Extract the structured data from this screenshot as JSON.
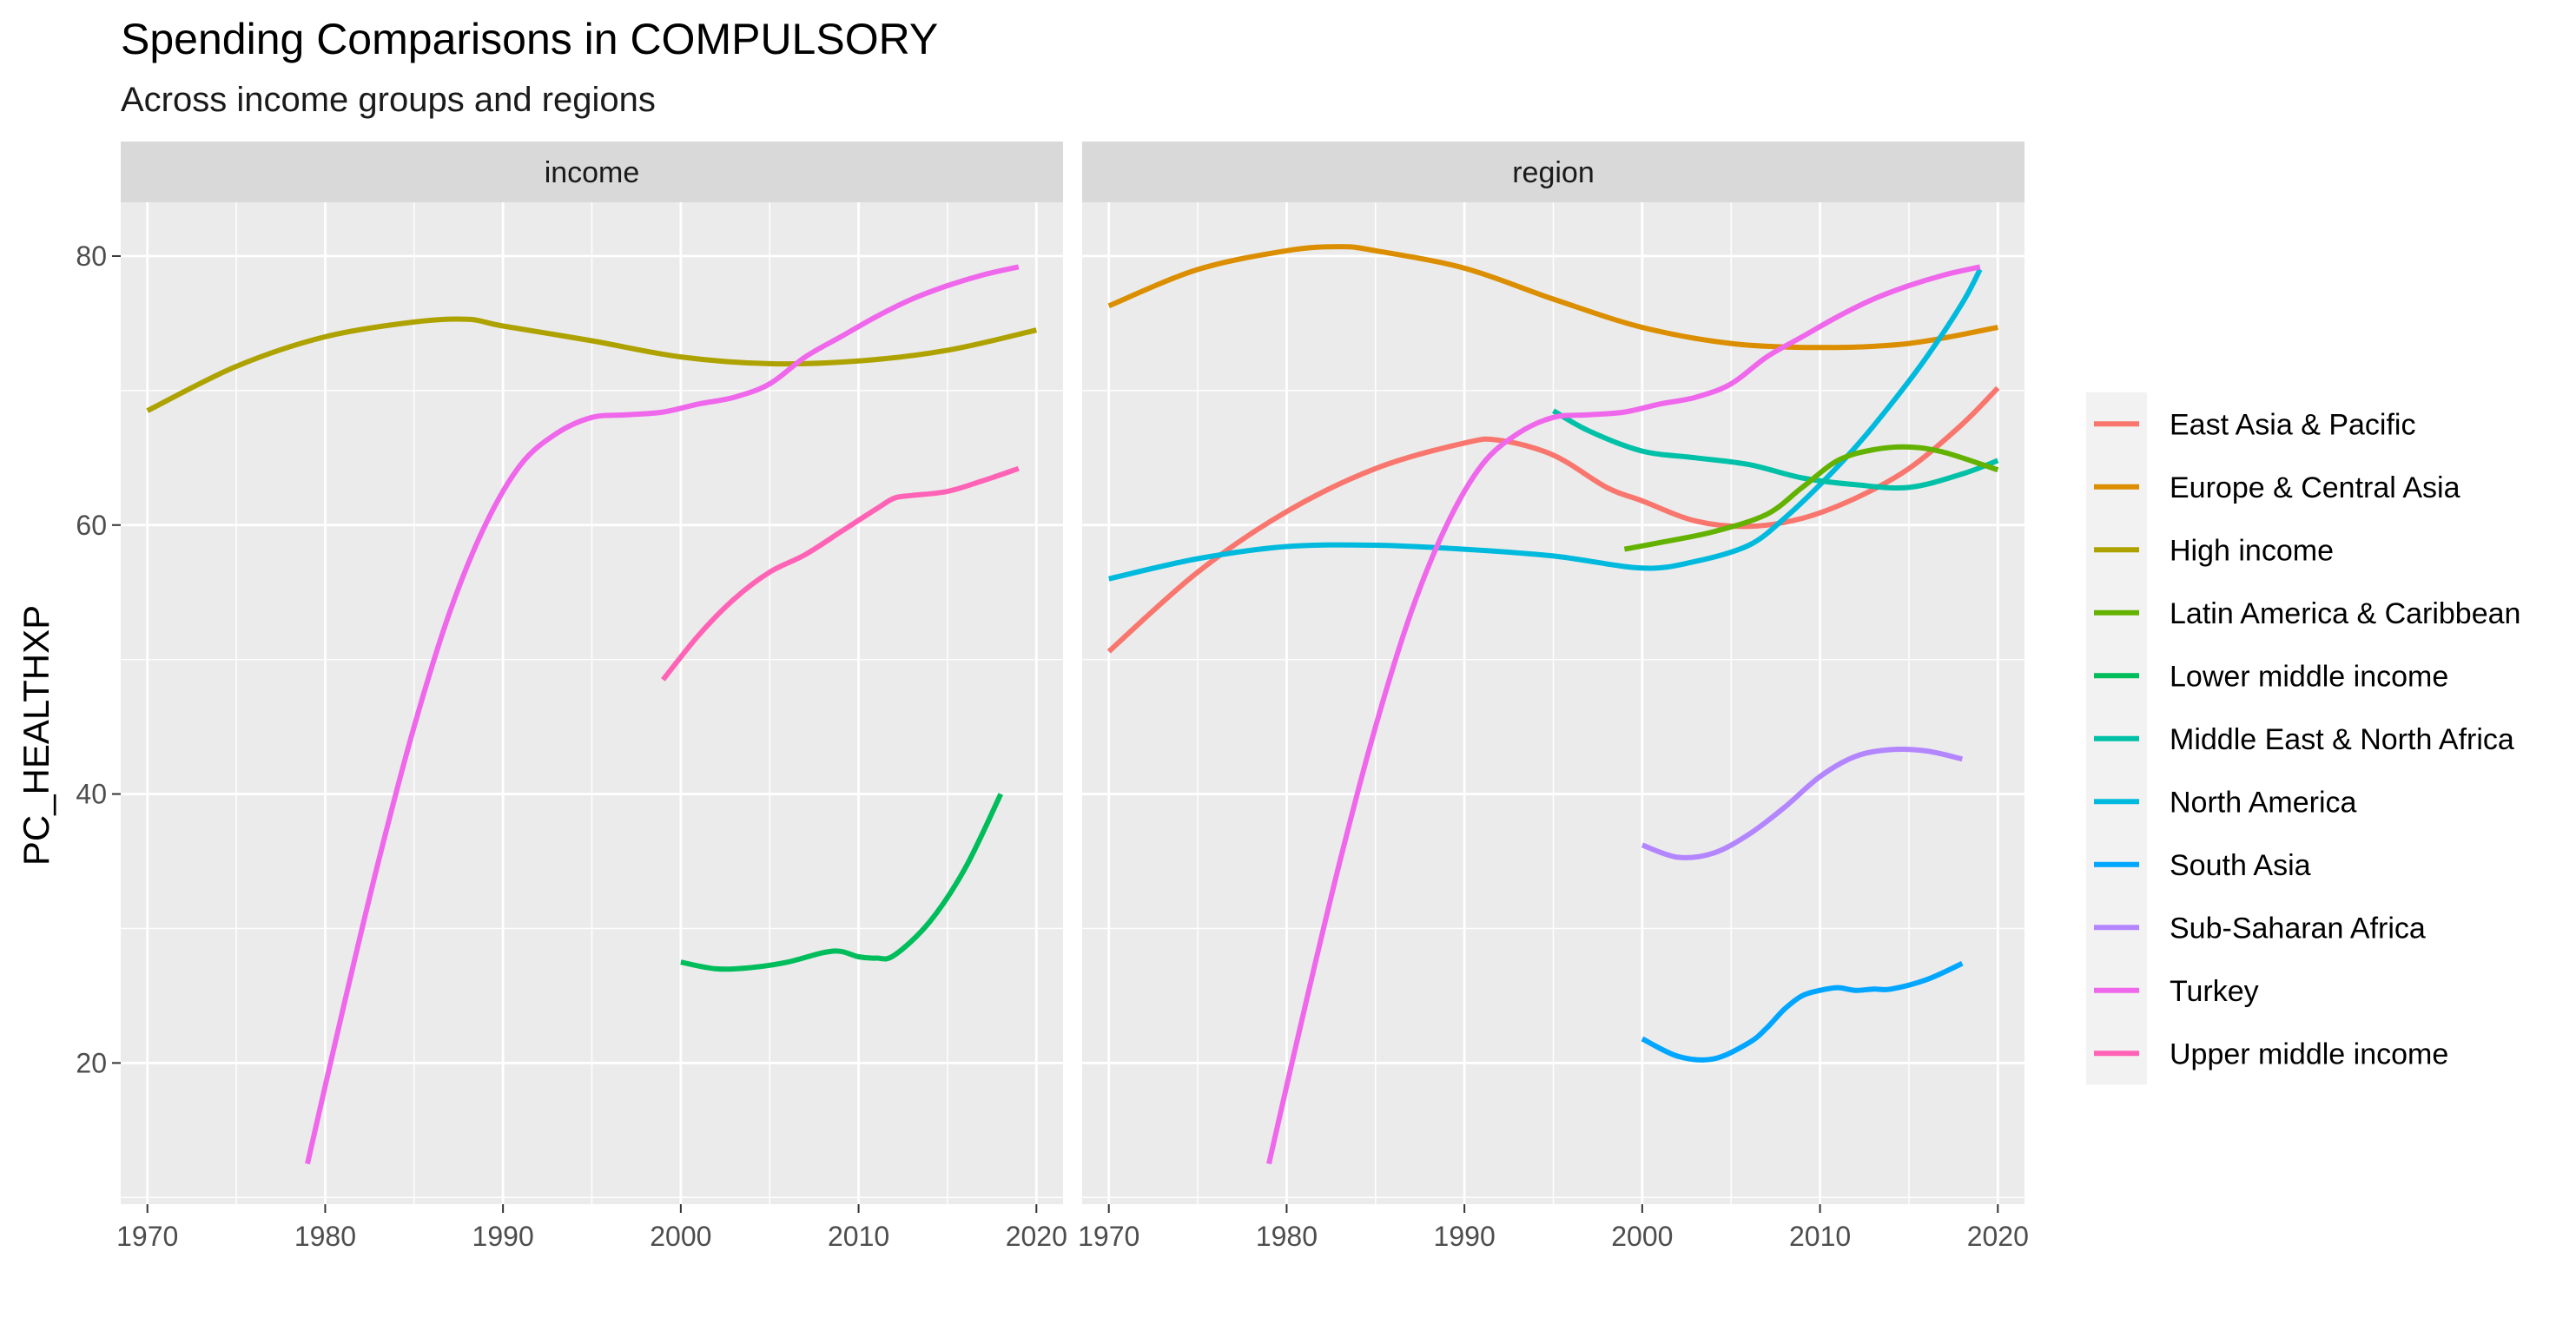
{
  "chart_data": {
    "type": "line",
    "title": "Spending Comparisons in COMPULSORY",
    "subtitle": "Across income groups and regions",
    "ylabel": "PC_HEALTHXP",
    "xlabel": "",
    "xlim": [
      1968.5,
      2021.5
    ],
    "ylim": [
      9.5,
      84
    ],
    "x_ticks": [
      1970,
      1980,
      1990,
      2000,
      2010,
      2020
    ],
    "y_ticks": [
      20,
      40,
      60,
      80
    ],
    "grid": true,
    "legend_position": "right",
    "legend": [
      {
        "name": "East Asia & Pacific",
        "color": "#F8766D"
      },
      {
        "name": "Europe & Central Asia",
        "color": "#DB8E00"
      },
      {
        "name": "High income",
        "color": "#AEA200"
      },
      {
        "name": "Latin America & Caribbean",
        "color": "#64B200"
      },
      {
        "name": "Lower middle income",
        "color": "#00BD5C"
      },
      {
        "name": "Middle East & North Africa",
        "color": "#00C1A7"
      },
      {
        "name": "North America",
        "color": "#00BADE"
      },
      {
        "name": "South Asia",
        "color": "#00A6FF"
      },
      {
        "name": "Sub-Saharan Africa",
        "color": "#B385FF"
      },
      {
        "name": "Turkey",
        "color": "#EF67EB"
      },
      {
        "name": "Upper middle income",
        "color": "#FF63B6"
      }
    ],
    "panels": [
      {
        "strip": "income",
        "series": [
          {
            "name": "High income",
            "x": [
              1970,
              1975,
              1980,
              1985,
              1988,
              1990,
              1995,
              2000,
              2005,
              2010,
              2015,
              2020
            ],
            "y": [
              68.5,
              71.8,
              74.0,
              75.1,
              75.3,
              74.8,
              73.7,
              72.5,
              72.0,
              72.2,
              73.0,
              74.5
            ]
          },
          {
            "name": "Turkey",
            "x": [
              1979,
              1981,
              1983,
              1985,
              1987,
              1989,
              1991,
              1993,
              1995,
              1997,
              1999,
              2001,
              2003,
              2005,
              2007,
              2009,
              2011,
              2013,
              2015,
              2017,
              2019
            ],
            "y": [
              12.5,
              24.0,
              35.0,
              45.0,
              53.5,
              60.0,
              64.5,
              66.8,
              68.0,
              68.2,
              68.4,
              69.0,
              69.5,
              70.5,
              72.5,
              74.0,
              75.5,
              76.8,
              77.8,
              78.6,
              79.2
            ]
          },
          {
            "name": "Upper middle income",
            "x": [
              1999,
              2001,
              2003,
              2005,
              2007,
              2009,
              2011,
              2012,
              2013,
              2015,
              2017,
              2019
            ],
            "y": [
              48.5,
              51.8,
              54.5,
              56.5,
              57.8,
              59.5,
              61.2,
              62.0,
              62.2,
              62.5,
              63.3,
              64.2
            ]
          },
          {
            "name": "Lower middle income",
            "x": [
              2000,
              2002,
              2004,
              2006,
              2008,
              2009,
              2010,
              2011,
              2012,
              2014,
              2016,
              2018
            ],
            "y": [
              27.5,
              27.0,
              27.1,
              27.5,
              28.2,
              28.3,
              27.9,
              27.8,
              28.0,
              30.5,
              34.5,
              40.0
            ]
          }
        ]
      },
      {
        "strip": "region",
        "series": [
          {
            "name": "Europe & Central Asia",
            "x": [
              1970,
              1975,
              1980,
              1983,
              1985,
              1990,
              1995,
              2000,
              2005,
              2010,
              2015,
              2020
            ],
            "y": [
              76.3,
              79.0,
              80.4,
              80.7,
              80.4,
              79.1,
              76.8,
              74.7,
              73.5,
              73.2,
              73.5,
              74.7
            ]
          },
          {
            "name": "East Asia & Pacific",
            "x": [
              1970,
              1975,
              1980,
              1985,
              1990,
              1992,
              1995,
              1998,
              2000,
              2003,
              2006,
              2009,
              2012,
              2015,
              2018,
              2020
            ],
            "y": [
              50.6,
              56.5,
              61.0,
              64.2,
              66.1,
              66.3,
              65.2,
              62.8,
              61.8,
              60.3,
              59.9,
              60.5,
              62.0,
              64.2,
              67.5,
              70.2
            ]
          },
          {
            "name": "North America",
            "x": [
              1970,
              1975,
              1980,
              1985,
              1990,
              1995,
              2000,
              2003,
              2006,
              2008,
              2010,
              2012,
              2014,
              2016,
              2018,
              2019
            ],
            "y": [
              56.0,
              57.5,
              58.4,
              58.5,
              58.2,
              57.7,
              56.8,
              57.3,
              58.5,
              60.5,
              63.0,
              65.8,
              69.0,
              72.5,
              76.5,
              79.0
            ]
          },
          {
            "name": "Middle East & North Africa",
            "x": [
              1995,
              1997,
              2000,
              2003,
              2006,
              2009,
              2012,
              2015,
              2018,
              2020
            ],
            "y": [
              68.5,
              67.0,
              65.5,
              65.0,
              64.5,
              63.5,
              63.0,
              62.8,
              63.8,
              64.8
            ]
          },
          {
            "name": "Latin America & Caribbean",
            "x": [
              1999,
              2001,
              2004,
              2007,
              2009,
              2011,
              2013,
              2015,
              2017,
              2020
            ],
            "y": [
              58.2,
              58.7,
              59.5,
              60.8,
              62.8,
              64.8,
              65.6,
              65.8,
              65.4,
              64.1
            ]
          },
          {
            "name": "Turkey",
            "x": [
              1979,
              1981,
              1983,
              1985,
              1987,
              1989,
              1991,
              1993,
              1995,
              1997,
              1999,
              2001,
              2003,
              2005,
              2007,
              2009,
              2011,
              2013,
              2015,
              2017,
              2019
            ],
            "y": [
              12.5,
              24.0,
              35.0,
              45.0,
              53.5,
              60.0,
              64.5,
              66.8,
              68.0,
              68.2,
              68.4,
              69.0,
              69.5,
              70.5,
              72.5,
              74.0,
              75.5,
              76.8,
              77.8,
              78.6,
              79.2
            ]
          },
          {
            "name": "Sub-Saharan Africa",
            "x": [
              2000,
              2002,
              2004,
              2006,
              2008,
              2010,
              2012,
              2014,
              2016,
              2018
            ],
            "y": [
              36.2,
              35.3,
              35.6,
              37.0,
              39.0,
              41.3,
              42.8,
              43.3,
              43.2,
              42.6
            ]
          },
          {
            "name": "South Asia",
            "x": [
              2000,
              2002,
              2004,
              2006,
              2007,
              2008,
              2009,
              2010,
              2011,
              2012,
              2013,
              2014,
              2016,
              2018
            ],
            "y": [
              21.8,
              20.5,
              20.3,
              21.5,
              22.6,
              24.0,
              25.0,
              25.4,
              25.6,
              25.4,
              25.5,
              25.5,
              26.2,
              27.4
            ]
          }
        ]
      }
    ]
  }
}
